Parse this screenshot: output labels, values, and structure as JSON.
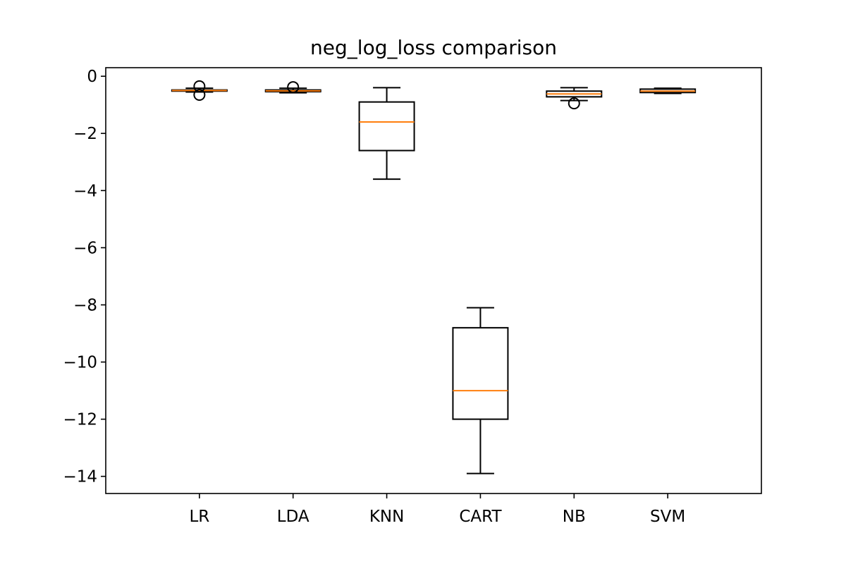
{
  "chart_data": {
    "type": "boxplot",
    "title": "neg_log_loss comparison",
    "xlabel": "",
    "ylabel": "",
    "ylim": [
      -14.6,
      0.3
    ],
    "yticks": [
      0,
      -2,
      -4,
      -6,
      -8,
      -10,
      -12,
      -14
    ],
    "ytick_labels": [
      "0",
      "−2",
      "−4",
      "−6",
      "−8",
      "−10",
      "−12",
      "−14"
    ],
    "grid": false,
    "categories": [
      "LR",
      "LDA",
      "KNN",
      "CART",
      "NB",
      "SVM"
    ],
    "boxes": [
      {
        "name": "LR",
        "whisker_low": -0.55,
        "q1": -0.52,
        "median": -0.5,
        "q3": -0.48,
        "whisker_high": -0.42,
        "fliers": [
          -0.35,
          -0.65
        ]
      },
      {
        "name": "LDA",
        "whisker_low": -0.58,
        "q1": -0.54,
        "median": -0.51,
        "q3": -0.48,
        "whisker_high": -0.42,
        "fliers": [
          -0.38
        ]
      },
      {
        "name": "KNN",
        "whisker_low": -3.6,
        "q1": -2.6,
        "median": -1.6,
        "q3": -0.9,
        "whisker_high": -0.4,
        "fliers": []
      },
      {
        "name": "CART",
        "whisker_low": -13.9,
        "q1": -12.0,
        "median": -11.0,
        "q3": -8.8,
        "whisker_high": -8.1,
        "fliers": []
      },
      {
        "name": "NB",
        "whisker_low": -0.85,
        "q1": -0.72,
        "median": -0.62,
        "q3": -0.52,
        "whisker_high": -0.4,
        "fliers": [
          -0.95
        ]
      },
      {
        "name": "SVM",
        "whisker_low": -0.6,
        "q1": -0.57,
        "median": -0.52,
        "q3": -0.45,
        "whisker_high": -0.42,
        "fliers": []
      }
    ],
    "colors": {
      "box": "#000000",
      "median": "#ff7f0e",
      "background": "#ffffff"
    }
  }
}
